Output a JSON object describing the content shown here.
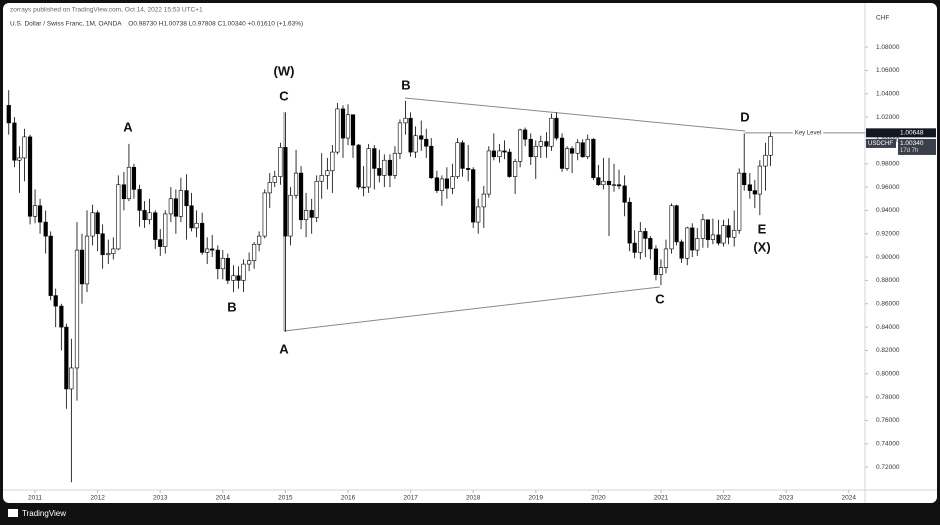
{
  "chart_data": {
    "type": "candlestick",
    "publisher_line": "zorrays published on TradingView.com, Oct 14, 2022 15:53 UTC+1",
    "title": "U.S. Dollar / Swiss Franc, 1M, OANDA",
    "ohlc_legend": "O0.98730 H1.00738 L0.97808 C1.00340 +0.01610 (+1.63%)",
    "currency": "CHF",
    "symbol_tag": "USDCHF",
    "countdown": "17d 7h",
    "footer": "TradingView",
    "up_color": "#ffffff",
    "down_color": "#000000",
    "wick_color": "#000000",
    "grid": false,
    "xlim": [
      2010.44,
      2024.26
    ],
    "xticks": [
      2011,
      2012,
      2013,
      2014,
      2015,
      2016,
      2017,
      2018,
      2019,
      2020,
      2021,
      2022,
      2023,
      2024
    ],
    "ylim": [
      0.7004,
      1.1049
    ],
    "yticks": [
      {
        "value": 0.72,
        "label": "0.72000"
      },
      {
        "value": 0.74,
        "label": "0.74000"
      },
      {
        "value": 0.76,
        "label": "0.76000"
      },
      {
        "value": 0.78,
        "label": "0.78000"
      },
      {
        "value": 0.8,
        "label": "0.80000"
      },
      {
        "value": 0.82,
        "label": "0.82000"
      },
      {
        "value": 0.84,
        "label": "0.84000"
      },
      {
        "value": 0.86,
        "label": "0.86000"
      },
      {
        "value": 0.88,
        "label": "0.88000"
      },
      {
        "value": 0.9,
        "label": "0.90000"
      },
      {
        "value": 0.92,
        "label": "0.92000"
      },
      {
        "value": 0.94,
        "label": "0.94000"
      },
      {
        "value": 0.96,
        "label": "0.96000"
      },
      {
        "value": 0.98,
        "label": "0.98000"
      },
      {
        "value": 1.0,
        "label": "1.00000"
      },
      {
        "value": 1.02,
        "label": "1.02000"
      },
      {
        "value": 1.04,
        "label": "1.04000"
      },
      {
        "value": 1.06,
        "label": "1.06000"
      },
      {
        "value": 1.08,
        "label": "1.08000"
      }
    ],
    "key_level": {
      "value": 1.00648,
      "label": "Key Level",
      "price_label": "1.00648"
    },
    "last_price": {
      "value": 1.0034,
      "label": "1.00340"
    },
    "annotations": [
      "(W)",
      "C",
      "A",
      "B",
      "B",
      "A",
      "C",
      "D",
      "E",
      "(X)"
    ],
    "x": [
      2010.58,
      2010.67,
      2010.75,
      2010.83,
      2010.92,
      2011.0,
      2011.08,
      2011.17,
      2011.25,
      2011.33,
      2011.42,
      2011.5,
      2011.58,
      2011.67,
      2011.75,
      2011.83,
      2011.92,
      2012.0,
      2012.08,
      2012.17,
      2012.25,
      2012.33,
      2012.42,
      2012.5,
      2012.58,
      2012.67,
      2012.75,
      2012.83,
      2012.92,
      2013.0,
      2013.08,
      2013.17,
      2013.25,
      2013.33,
      2013.42,
      2013.5,
      2013.58,
      2013.67,
      2013.75,
      2013.83,
      2013.92,
      2014.0,
      2014.08,
      2014.17,
      2014.25,
      2014.33,
      2014.42,
      2014.5,
      2014.58,
      2014.67,
      2014.75,
      2014.83,
      2014.92,
      2015.0,
      2015.08,
      2015.17,
      2015.25,
      2015.33,
      2015.42,
      2015.5,
      2015.58,
      2015.67,
      2015.75,
      2015.83,
      2015.92,
      2016.0,
      2016.08,
      2016.17,
      2016.25,
      2016.33,
      2016.42,
      2016.5,
      2016.58,
      2016.67,
      2016.75,
      2016.83,
      2016.92,
      2017.0,
      2017.08,
      2017.17,
      2017.25,
      2017.33,
      2017.42,
      2017.5,
      2017.58,
      2017.67,
      2017.75,
      2017.83,
      2017.92,
      2018.0,
      2018.08,
      2018.17,
      2018.25,
      2018.33,
      2018.42,
      2018.5,
      2018.58,
      2018.67,
      2018.75,
      2018.83,
      2018.92,
      2019.0,
      2019.08,
      2019.17,
      2019.25,
      2019.33,
      2019.42,
      2019.5,
      2019.58,
      2019.67,
      2019.75,
      2019.83,
      2019.92,
      2020.0,
      2020.08,
      2020.17,
      2020.25,
      2020.33,
      2020.42,
      2020.5,
      2020.58,
      2020.67,
      2020.75,
      2020.83,
      2020.92,
      2021.0,
      2021.08,
      2021.17,
      2021.25,
      2021.33,
      2021.42,
      2021.5,
      2021.58,
      2021.67,
      2021.75,
      2021.83,
      2021.92,
      2022.0,
      2022.08,
      2022.17,
      2022.25,
      2022.33,
      2022.42,
      2022.5,
      2022.58,
      2022.67,
      2022.75
    ],
    "open": [
      1.03,
      1.015,
      0.983,
      0.985,
      1.003,
      0.935,
      0.944,
      0.93,
      0.918,
      0.867,
      0.858,
      0.84,
      0.787,
      0.805,
      0.906,
      0.877,
      0.918,
      0.938,
      0.92,
      0.902,
      0.903,
      0.907,
      0.962,
      0.95,
      0.977,
      0.958,
      0.94,
      0.932,
      0.938,
      0.915,
      0.909,
      0.937,
      0.95,
      0.935,
      0.957,
      0.944,
      0.925,
      0.929,
      0.904,
      0.907,
      0.906,
      0.89,
      0.899,
      0.88,
      0.884,
      0.88,
      0.894,
      0.897,
      0.911,
      0.918,
      0.955,
      0.964,
      0.969,
      0.994,
      0.918,
      0.953,
      0.972,
      0.932,
      0.94,
      0.934,
      0.965,
      0.97,
      0.974,
      0.99,
      1.027,
      1.002,
      1.022,
      0.996,
      0.96,
      0.96,
      0.993,
      0.976,
      0.97,
      0.983,
      0.97,
      0.989,
      1.015,
      1.019,
      0.99,
      1.004,
      1.001,
      0.995,
      0.968,
      0.957,
      0.967,
      0.959,
      0.969,
      0.998,
      0.976,
      0.975,
      0.93,
      0.943,
      0.954,
      0.991,
      0.986,
      0.991,
      0.99,
      0.969,
      0.982,
      1.009,
      1.001,
      0.986,
      0.995,
      0.999,
      0.995,
      1.019,
      1.002,
      0.976,
      0.993,
      0.989,
      0.998,
      0.986,
      1.001,
      0.968,
      0.962,
      0.965,
      0.962,
      0.962,
      0.961,
      0.947,
      0.912,
      0.904,
      0.922,
      0.916,
      0.907,
      0.885,
      0.891,
      0.907,
      0.944,
      0.913,
      0.899,
      0.925,
      0.906,
      0.916,
      0.932,
      0.915,
      0.919,
      0.912,
      0.927,
      0.917,
      0.923,
      0.972,
      0.962,
      0.957,
      0.954,
      0.978,
      0.9873
    ],
    "high": [
      1.043,
      1.02,
      0.995,
      1.01,
      1.005,
      0.958,
      0.95,
      0.94,
      0.922,
      0.873,
      0.86,
      0.843,
      0.83,
      0.93,
      0.92,
      0.94,
      0.945,
      0.94,
      0.928,
      0.915,
      0.917,
      0.97,
      0.973,
      0.997,
      0.98,
      0.962,
      0.948,
      0.95,
      0.94,
      0.924,
      0.94,
      0.96,
      0.958,
      0.968,
      0.971,
      0.955,
      0.94,
      0.938,
      0.917,
      0.919,
      0.91,
      0.906,
      0.903,
      0.893,
      0.892,
      0.898,
      0.904,
      0.913,
      0.922,
      0.958,
      0.972,
      0.974,
      0.998,
      1.024,
      0.96,
      0.992,
      0.978,
      0.955,
      0.95,
      0.97,
      0.989,
      0.985,
      0.996,
      1.032,
      1.03,
      1.031,
      1.022,
      0.997,
      0.978,
      0.997,
      0.996,
      0.992,
      0.988,
      0.988,
      0.995,
      1.018,
      1.034,
      1.024,
      1.012,
      1.017,
      1.01,
      1.002,
      0.974,
      0.97,
      0.977,
      0.98,
      1.002,
      1.0,
      0.996,
      0.977,
      0.95,
      0.961,
      0.995,
      1.006,
      0.997,
      1.0,
      0.993,
      0.984,
      1.01,
      1.011,
      1.006,
      1.0,
      1.004,
      1.007,
      1.023,
      1.024,
      1.006,
      0.995,
      0.995,
      1.001,
      1.001,
      1.005,
      1.002,
      0.979,
      0.985,
      0.985,
      0.98,
      0.975,
      0.97,
      0.951,
      0.923,
      0.93,
      0.925,
      0.918,
      0.91,
      0.898,
      0.915,
      0.946,
      0.945,
      0.915,
      0.926,
      0.929,
      0.925,
      0.937,
      0.932,
      0.933,
      0.932,
      0.932,
      0.933,
      0.94,
      0.976,
      1.006,
      0.972,
      0.966,
      0.983,
      0.998,
      1.00738
    ],
    "low": [
      1.005,
      0.977,
      0.955,
      0.965,
      0.928,
      0.929,
      0.92,
      0.903,
      0.863,
      0.84,
      0.82,
      0.77,
      0.707,
      0.777,
      0.86,
      0.87,
      0.91,
      0.905,
      0.89,
      0.894,
      0.898,
      0.906,
      0.94,
      0.948,
      0.95,
      0.926,
      0.925,
      0.928,
      0.907,
      0.901,
      0.903,
      0.93,
      0.92,
      0.93,
      0.915,
      0.922,
      0.917,
      0.902,
      0.894,
      0.9,
      0.881,
      0.881,
      0.877,
      0.87,
      0.873,
      0.87,
      0.888,
      0.89,
      0.905,
      0.916,
      0.942,
      0.96,
      0.962,
      0.836,
      0.91,
      0.95,
      0.924,
      0.917,
      0.92,
      0.93,
      0.95,
      0.958,
      0.955,
      0.988,
      0.985,
      0.996,
      0.985,
      0.958,
      0.952,
      0.955,
      0.958,
      0.964,
      0.96,
      0.96,
      0.967,
      0.984,
      1.005,
      0.986,
      0.985,
      0.991,
      0.985,
      0.967,
      0.955,
      0.944,
      0.95,
      0.954,
      0.967,
      0.969,
      0.965,
      0.925,
      0.92,
      0.925,
      0.951,
      0.983,
      0.981,
      0.984,
      0.968,
      0.954,
      0.977,
      0.995,
      0.979,
      0.967,
      0.985,
      0.985,
      0.991,
      1.0,
      0.973,
      0.974,
      0.972,
      0.983,
      0.985,
      0.984,
      0.966,
      0.961,
      0.958,
      0.918,
      0.956,
      0.958,
      0.935,
      0.905,
      0.899,
      0.898,
      0.9,
      0.898,
      0.88,
      0.876,
      0.886,
      0.903,
      0.91,
      0.895,
      0.893,
      0.9,
      0.901,
      0.908,
      0.908,
      0.911,
      0.91,
      0.909,
      0.911,
      0.909,
      0.92,
      0.957,
      0.95,
      0.942,
      0.936,
      0.957,
      0.97808
    ],
    "close": [
      1.015,
      0.983,
      0.985,
      1.003,
      0.935,
      0.944,
      0.93,
      0.918,
      0.867,
      0.858,
      0.84,
      0.787,
      0.805,
      0.906,
      0.877,
      0.918,
      0.938,
      0.92,
      0.902,
      0.903,
      0.907,
      0.962,
      0.95,
      0.977,
      0.958,
      0.94,
      0.932,
      0.938,
      0.915,
      0.909,
      0.937,
      0.95,
      0.935,
      0.957,
      0.944,
      0.925,
      0.929,
      0.904,
      0.907,
      0.906,
      0.89,
      0.899,
      0.88,
      0.884,
      0.88,
      0.894,
      0.897,
      0.911,
      0.918,
      0.955,
      0.964,
      0.969,
      0.994,
      0.918,
      0.953,
      0.972,
      0.932,
      0.94,
      0.934,
      0.965,
      0.97,
      0.974,
      0.99,
      1.027,
      1.002,
      1.022,
      0.996,
      0.96,
      0.96,
      0.993,
      0.976,
      0.97,
      0.983,
      0.97,
      0.989,
      1.015,
      1.019,
      0.99,
      1.004,
      1.001,
      0.995,
      0.968,
      0.957,
      0.967,
      0.959,
      0.969,
      0.998,
      0.976,
      0.975,
      0.93,
      0.943,
      0.954,
      0.991,
      0.986,
      0.991,
      0.99,
      0.969,
      0.982,
      1.009,
      1.001,
      0.986,
      0.995,
      0.999,
      0.995,
      1.019,
      1.002,
      0.976,
      0.993,
      0.989,
      0.998,
      0.986,
      1.001,
      0.968,
      0.962,
      0.965,
      0.962,
      0.962,
      0.961,
      0.947,
      0.912,
      0.904,
      0.922,
      0.916,
      0.907,
      0.885,
      0.891,
      0.907,
      0.944,
      0.913,
      0.899,
      0.925,
      0.906,
      0.916,
      0.932,
      0.915,
      0.919,
      0.912,
      0.927,
      0.917,
      0.923,
      0.972,
      0.962,
      0.957,
      0.954,
      0.978,
      0.9873,
      1.0034
    ]
  }
}
